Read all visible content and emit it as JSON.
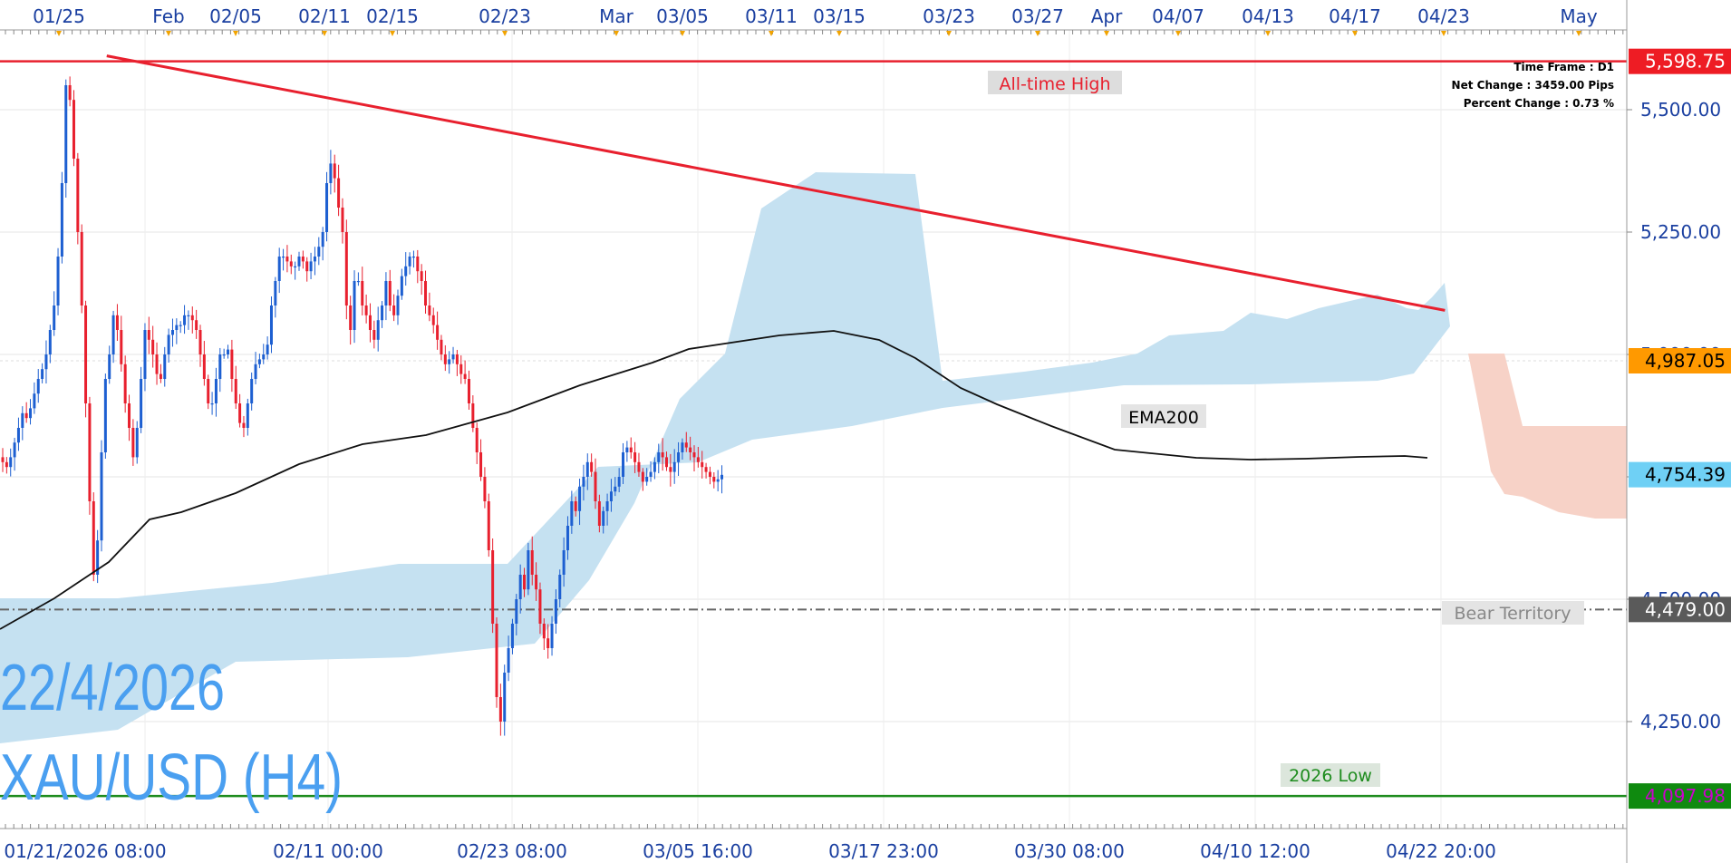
{
  "info": {
    "timeframe": "Time Frame : D1",
    "net_change": "Net Change : 3459.00 Pips",
    "percent_change": "Percent Change : 0.73 %"
  },
  "watermark": {
    "date": "22/4/2026",
    "pair": "XAU/USD (H4)"
  },
  "annotations": {
    "ath_label": "All-time High",
    "ema_label": "EMA200",
    "bear_label": "Bear Territory",
    "low_label": "2026 Low"
  },
  "colors": {
    "bull": "#1d5fd1",
    "bear": "#e8202e",
    "cloud_bull": "#c5e1f1",
    "cloud_bear": "#f7d2c7",
    "ath_line": "#e8202e",
    "trend_line": "#e8202e",
    "low_line": "#1e8c1e",
    "ema": "#111111",
    "bear_line": "#666666"
  },
  "chart_data": {
    "type": "candlestick",
    "symbol": "XAU/USD",
    "timeframe": "H4",
    "ylim": [
      4060,
      5650
    ],
    "y_ticks": [
      4250,
      4500,
      4750,
      5000,
      5250,
      5500
    ],
    "y_tick_labels": [
      "4,250.00",
      "4,500.00",
      "4,750.00",
      "5,000.00",
      "5,250.00",
      "5,500.00"
    ],
    "top_axis_labels": [
      "01/25",
      "Feb",
      "02/05",
      "02/11",
      "02/15",
      "02/23",
      "Mar",
      "03/05",
      "03/11",
      "03/15",
      "03/23",
      "03/27",
      "Apr",
      "04/07",
      "04/13",
      "04/17",
      "04/23",
      "May"
    ],
    "bottom_axis_labels": [
      "01/21/2026 08:00",
      "02/11 00:00",
      "02/23 08:00",
      "03/05 16:00",
      "03/17 23:00",
      "03/30 08:00",
      "04/10 12:00",
      "04/22 20:00"
    ],
    "levels": [
      {
        "name": "All-time High",
        "value": 5598.75,
        "label": "5,598.75",
        "color": "#e8202e"
      },
      {
        "name": "Ichimoku cloud",
        "value": 4987.05,
        "label": "4,987.05",
        "color": "#ff9900"
      },
      {
        "name": "Last price",
        "value": 4754.39,
        "label": "4,754.39",
        "color": "#6fd0f5"
      },
      {
        "name": "Bear Territory",
        "value": 4479.0,
        "label": "4,479.00",
        "color": "#666666"
      },
      {
        "name": "2026 Low",
        "value": 4097.98,
        "label": "4,097.98",
        "color": "#1e8c1e"
      }
    ],
    "trendline": {
      "start": {
        "bar": 16,
        "price": 5610
      },
      "end": {
        "bar": 365,
        "price": 5090
      }
    },
    "closes": [
      4780,
      4770,
      4790,
      4820,
      4850,
      4880,
      4870,
      4890,
      4920,
      4950,
      4970,
      5000,
      5050,
      5100,
      5200,
      5350,
      5550,
      5520,
      5400,
      5250,
      5100,
      4900,
      4700,
      4550,
      4620,
      4800,
      4950,
      5000,
      5080,
      5050,
      4980,
      4900,
      4850,
      4790,
      4850,
      4950,
      5050,
      5030,
      5000,
      4960,
      4950,
      5000,
      5040,
      5050,
      5060,
      5060,
      5080,
      5080,
      5070,
      5050,
      5000,
      4950,
      4900,
      4900,
      4950,
      5000,
      5000,
      5010,
      4950,
      4900,
      4860,
      4850,
      4900,
      4950,
      4980,
      4990,
      5000,
      5020,
      5100,
      5150,
      5200,
      5200,
      5190,
      5180,
      5180,
      5200,
      5190,
      5170,
      5190,
      5200,
      5220,
      5250,
      5350,
      5390,
      5360,
      5300,
      5250,
      5100,
      5050,
      5150,
      5150,
      5100,
      5080,
      5050,
      5030,
      5070,
      5100,
      5150,
      5100,
      5080,
      5120,
      5160,
      5180,
      5200,
      5200,
      5170,
      5150,
      5100,
      5080,
      5060,
      5030,
      5000,
      4980,
      4990,
      5000,
      4980,
      4960,
      4950,
      4900,
      4850,
      4800,
      4750,
      4700,
      4600,
      4450,
      4300,
      4250,
      4350,
      4400,
      4450,
      4500,
      4550,
      4520,
      4600,
      4550,
      4520,
      4450,
      4420,
      4400,
      4450,
      4500,
      4550,
      4600,
      4650,
      4700,
      4680,
      4730,
      4750,
      4780,
      4760,
      4700,
      4650,
      4680,
      4700,
      4720,
      4730,
      4750,
      4800,
      4810,
      4800,
      4780,
      4760,
      4740,
      4750,
      4760,
      4780,
      4800,
      4790,
      4770,
      4760,
      4780,
      4800,
      4820,
      4810,
      4800,
      4790,
      4780,
      4770,
      4760,
      4750,
      4740,
      4745,
      4754
    ]
  }
}
